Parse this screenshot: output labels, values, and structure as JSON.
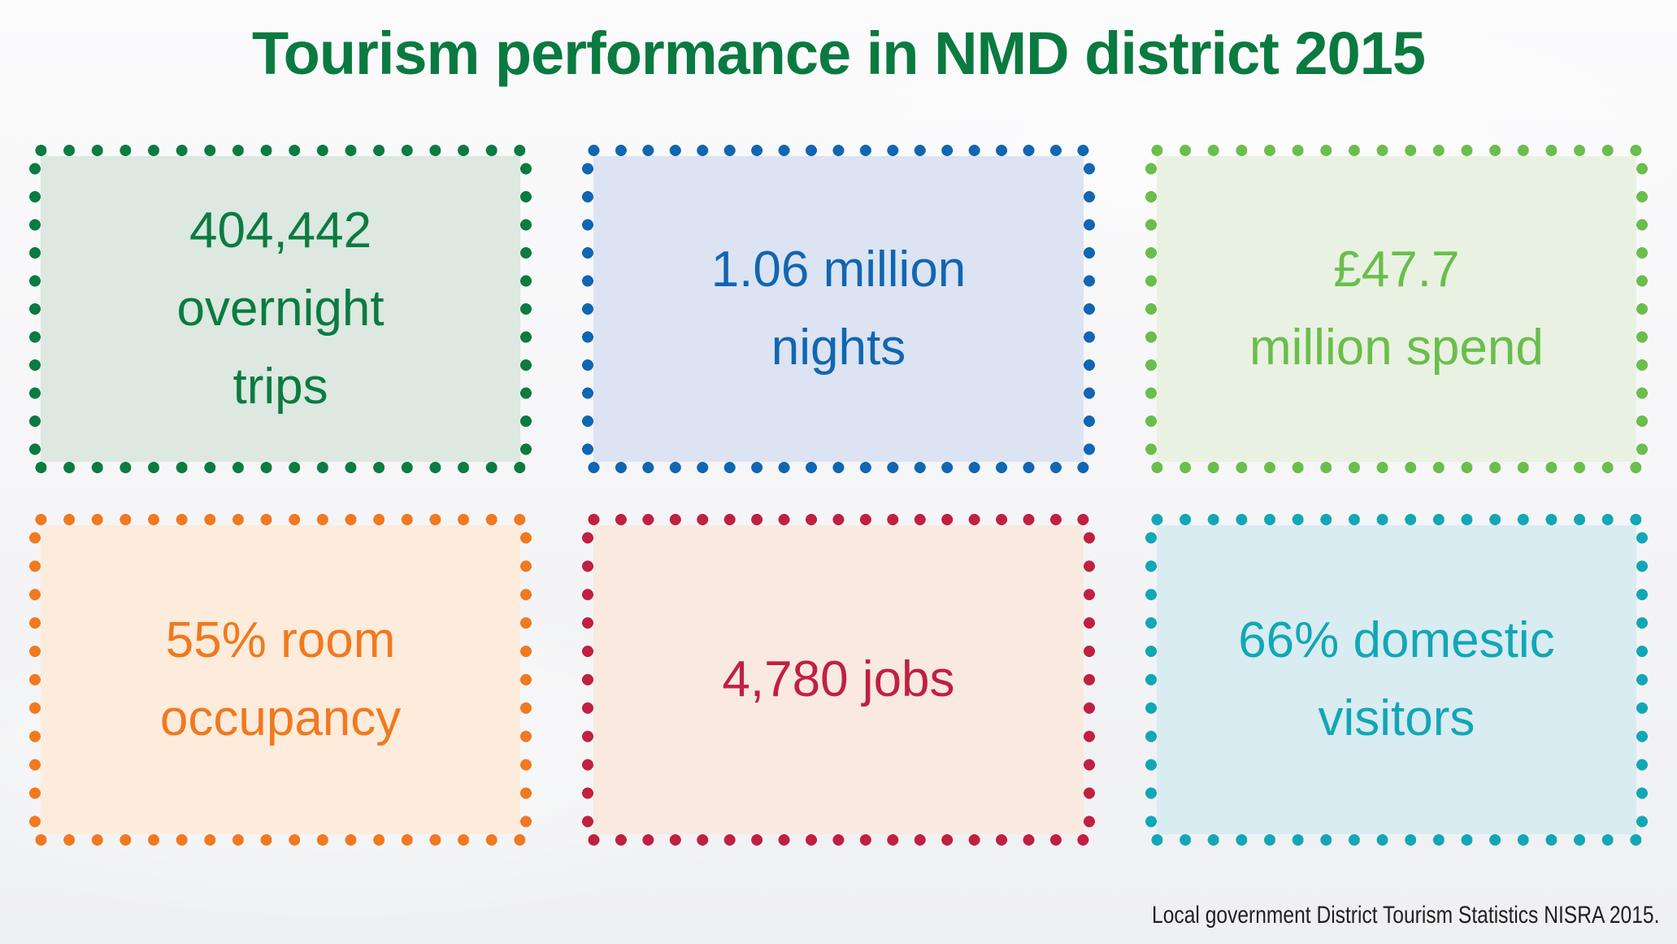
{
  "title": "Tourism performance in NMD district 2015",
  "source_note": "Local government District Tourism Statistics NISRA 2015.",
  "colors": {
    "title_color": "#0a7a40",
    "source_color": "#232021",
    "background": "#f5f5f7"
  },
  "cards": [
    {
      "id": "overnight-trips",
      "text": "404,442\novernight\ntrips",
      "dot_color": "#0b7b42",
      "fill_color": "#dce8e0",
      "text_color": "#0b7b42"
    },
    {
      "id": "nights",
      "text": "1.06 million\nnights",
      "dot_color": "#1166b1",
      "fill_color": "#dce3f3",
      "text_color": "#1166b1"
    },
    {
      "id": "spend",
      "text": "£47.7\nmillion spend",
      "dot_color": "#6abe4c",
      "fill_color": "#e9f2e2",
      "text_color": "#6abe4c"
    },
    {
      "id": "room-occupancy",
      "text": "55% room\noccupancy",
      "dot_color": "#f1791f",
      "fill_color": "#fdecdc",
      "text_color": "#f1791f"
    },
    {
      "id": "jobs",
      "text": "4,780 jobs",
      "dot_color": "#c02041",
      "fill_color": "#f9e9e1",
      "text_color": "#c02041"
    },
    {
      "id": "domestic-visitors",
      "text": "66% domestic\nvisitors",
      "dot_color": "#12a7b6",
      "fill_color": "#d9ecf2",
      "text_color": "#12a7b6"
    }
  ],
  "chart_data": {
    "type": "table",
    "title": "Tourism performance in NMD district 2015",
    "metrics": [
      {
        "label": "overnight trips",
        "value": 404442,
        "display": "404,442 overnight trips"
      },
      {
        "label": "nights",
        "value": 1060000,
        "display": "1.06 million nights"
      },
      {
        "label": "visitor spend",
        "value": 47700000,
        "unit": "GBP",
        "display": "£47.7 million spend"
      },
      {
        "label": "room occupancy",
        "value": 55,
        "unit": "%",
        "display": "55% room occupancy"
      },
      {
        "label": "jobs",
        "value": 4780,
        "display": "4,780 jobs"
      },
      {
        "label": "domestic visitors",
        "value": 66,
        "unit": "%",
        "display": "66% domestic visitors"
      }
    ],
    "source": "Local government District Tourism Statistics NISRA 2015.",
    "legend_position": "none",
    "grid": false
  }
}
